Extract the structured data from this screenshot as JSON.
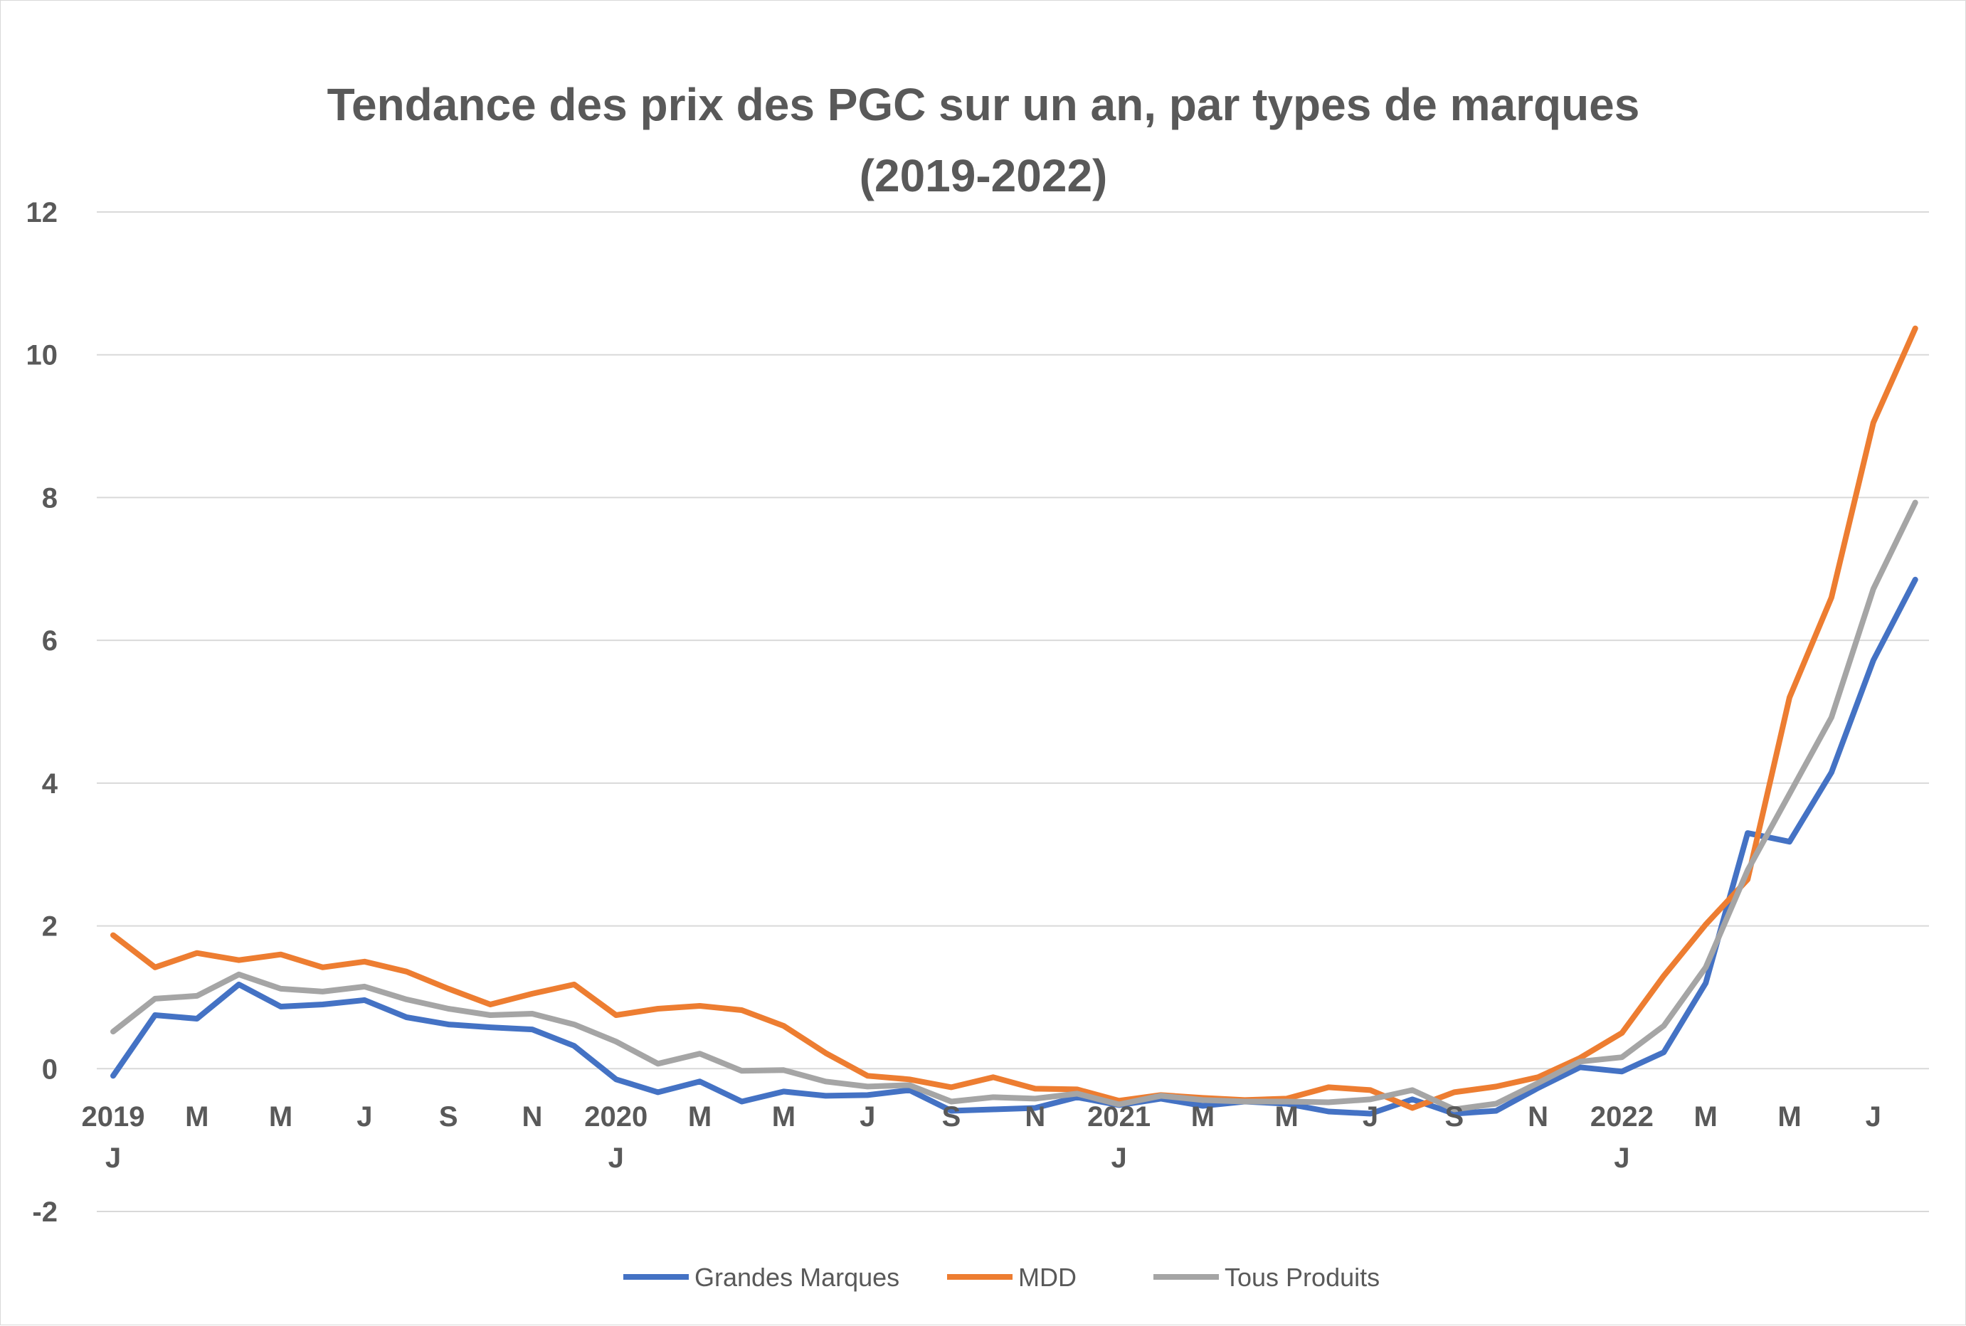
{
  "chart_data": {
    "type": "line",
    "title_lines": [
      "Tendance des prix des PGC sur un an, par types de marques",
      "(2019-2022)"
    ],
    "ylim": [
      -2,
      12
    ],
    "yticks": [
      -2,
      0,
      2,
      4,
      6,
      8,
      10,
      12
    ],
    "grid": true,
    "legend_position": "bottom",
    "x_tick_labels": [
      {
        "index": 0,
        "month": "J",
        "year": "2019"
      },
      {
        "index": 2,
        "month": "M"
      },
      {
        "index": 4,
        "month": "M"
      },
      {
        "index": 6,
        "month": "J"
      },
      {
        "index": 8,
        "month": "S"
      },
      {
        "index": 10,
        "month": "N"
      },
      {
        "index": 12,
        "month": "J",
        "year": "2020"
      },
      {
        "index": 14,
        "month": "M"
      },
      {
        "index": 16,
        "month": "M"
      },
      {
        "index": 18,
        "month": "J"
      },
      {
        "index": 20,
        "month": "S"
      },
      {
        "index": 22,
        "month": "N"
      },
      {
        "index": 24,
        "month": "J",
        "year": "2021"
      },
      {
        "index": 26,
        "month": "M"
      },
      {
        "index": 28,
        "month": "M"
      },
      {
        "index": 30,
        "month": "J"
      },
      {
        "index": 32,
        "month": "S"
      },
      {
        "index": 34,
        "month": "N"
      },
      {
        "index": 36,
        "month": "J",
        "year": "2022"
      },
      {
        "index": 38,
        "month": "M"
      },
      {
        "index": 40,
        "month": "M"
      },
      {
        "index": 42,
        "month": "J"
      }
    ],
    "series": [
      {
        "name": "Grandes Marques",
        "color": "#4472c4",
        "values": [
          -0.1,
          0.75,
          0.7,
          1.18,
          0.87,
          0.9,
          0.96,
          0.72,
          0.62,
          0.58,
          0.55,
          0.32,
          -0.15,
          -0.33,
          -0.18,
          -0.46,
          -0.32,
          -0.38,
          -0.37,
          -0.3,
          -0.59,
          -0.57,
          -0.55,
          -0.4,
          -0.51,
          -0.42,
          -0.52,
          -0.46,
          -0.49,
          -0.6,
          -0.63,
          -0.43,
          -0.63,
          -0.59,
          -0.27,
          0.02,
          -0.04,
          0.23,
          1.2,
          3.3,
          3.18,
          4.15,
          5.72,
          6.85
        ]
      },
      {
        "name": "MDD",
        "color": "#ed7d31",
        "values": [
          1.87,
          1.42,
          1.62,
          1.52,
          1.6,
          1.42,
          1.5,
          1.36,
          1.12,
          0.9,
          1.05,
          1.18,
          0.75,
          0.84,
          0.88,
          0.82,
          0.6,
          0.22,
          -0.1,
          -0.15,
          -0.26,
          -0.12,
          -0.28,
          -0.29,
          -0.45,
          -0.37,
          -0.41,
          -0.44,
          -0.42,
          -0.26,
          -0.3,
          -0.55,
          -0.33,
          -0.25,
          -0.12,
          0.15,
          0.5,
          1.3,
          2.02,
          2.65,
          5.2,
          6.6,
          9.05,
          10.37
        ]
      },
      {
        "name": "Tous Produits",
        "color": "#a5a5a5",
        "values": [
          0.52,
          0.98,
          1.02,
          1.32,
          1.12,
          1.08,
          1.15,
          0.97,
          0.84,
          0.75,
          0.77,
          0.62,
          0.38,
          0.07,
          0.21,
          -0.03,
          -0.02,
          -0.18,
          -0.25,
          -0.23,
          -0.46,
          -0.4,
          -0.42,
          -0.35,
          -0.5,
          -0.38,
          -0.44,
          -0.46,
          -0.46,
          -0.47,
          -0.43,
          -0.3,
          -0.57,
          -0.49,
          -0.2,
          0.1,
          0.16,
          0.6,
          1.42,
          2.78,
          3.85,
          4.92,
          6.72,
          7.93
        ]
      }
    ]
  }
}
